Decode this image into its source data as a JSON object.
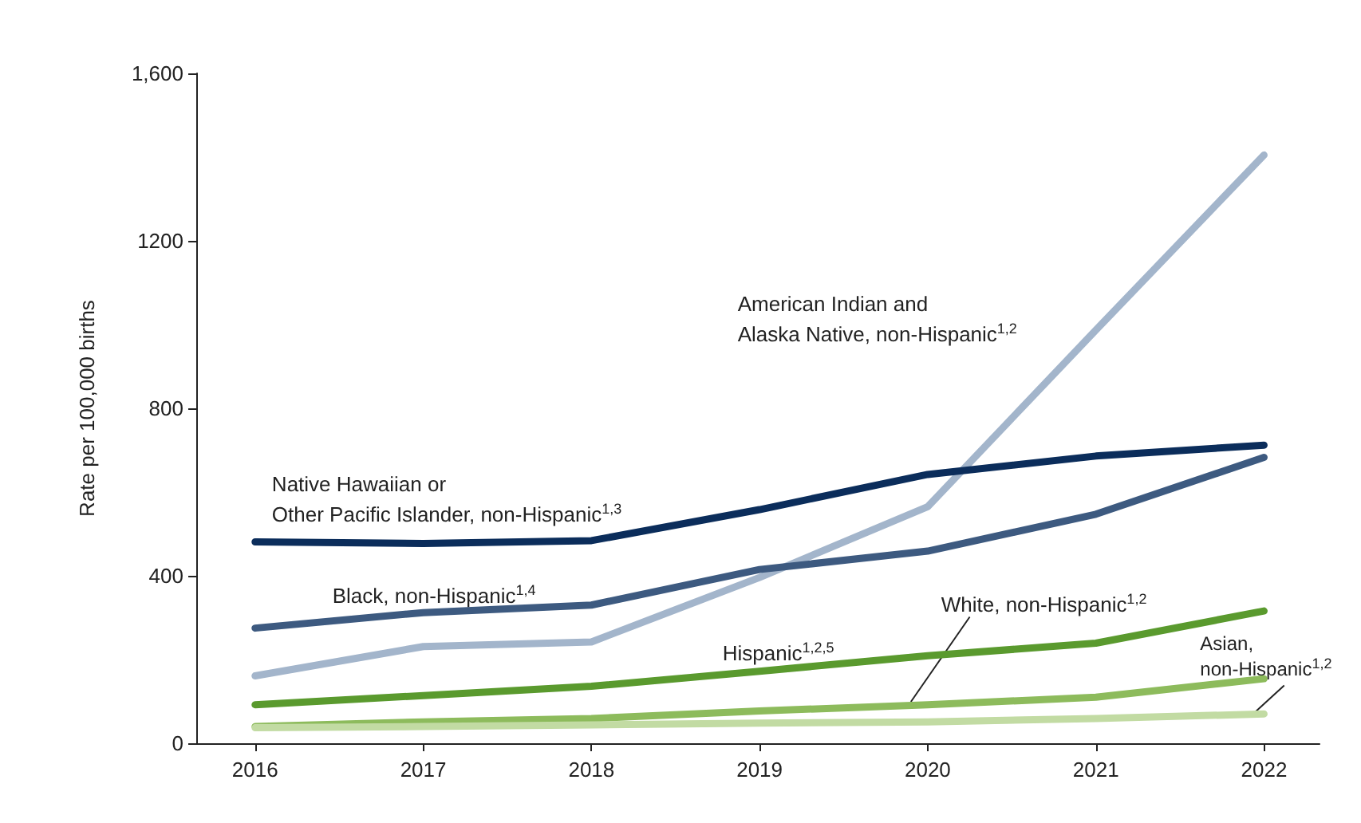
{
  "chart_data": {
    "type": "line",
    "ylabel": "Rate per 100,000 births",
    "x": [
      2016,
      2017,
      2018,
      2019,
      2020,
      2021,
      2022
    ],
    "xlim": [
      2015.65,
      2022.33
    ],
    "xticks": [
      2016,
      2017,
      2018,
      2019,
      2020,
      2021,
      2022
    ],
    "ylim": [
      0,
      1600
    ],
    "yticks": [
      0,
      400,
      800,
      1200,
      {
        "value": 1600,
        "label": "1,600"
      }
    ],
    "grid": false,
    "series": [
      {
        "name": "American Indian and\nAlaska Native, non-Hispanic$^{1,2}$",
        "color": "#a3b5cb",
        "values": [
          161,
          231,
          242,
          396,
          565,
          987,
          1405
        ]
      },
      {
        "name": "Native Hawaiian or\nOther Pacific Islander, non-Hispanic$^{1,3}$",
        "color": "#0b2d5b",
        "values": [
          481,
          477,
          484,
          558,
          642,
          686,
          712
        ]
      },
      {
        "name": "Black, non-Hispanic$^{1,4}$",
        "color": "#3d5a80",
        "values": [
          275,
          312,
          330,
          415,
          459,
          547,
          683
        ]
      },
      {
        "name": "Hispanic$^{1,2,5}$",
        "color": "#5a9a2e",
        "values": [
          92,
          114,
          136,
          172,
          209,
          239,
          316
        ]
      },
      {
        "name": "White, non-Hispanic$^{1,2}$",
        "color": "#8dbb5c",
        "values": [
          40,
          51,
          59,
          77,
          92,
          110,
          154
        ]
      },
      {
        "name": "Asian,\nnon-Hispanic$^{1,2}$",
        "color": "#c2dba3",
        "values": [
          37,
          40,
          44,
          48,
          51,
          59,
          70
        ]
      }
    ]
  }
}
